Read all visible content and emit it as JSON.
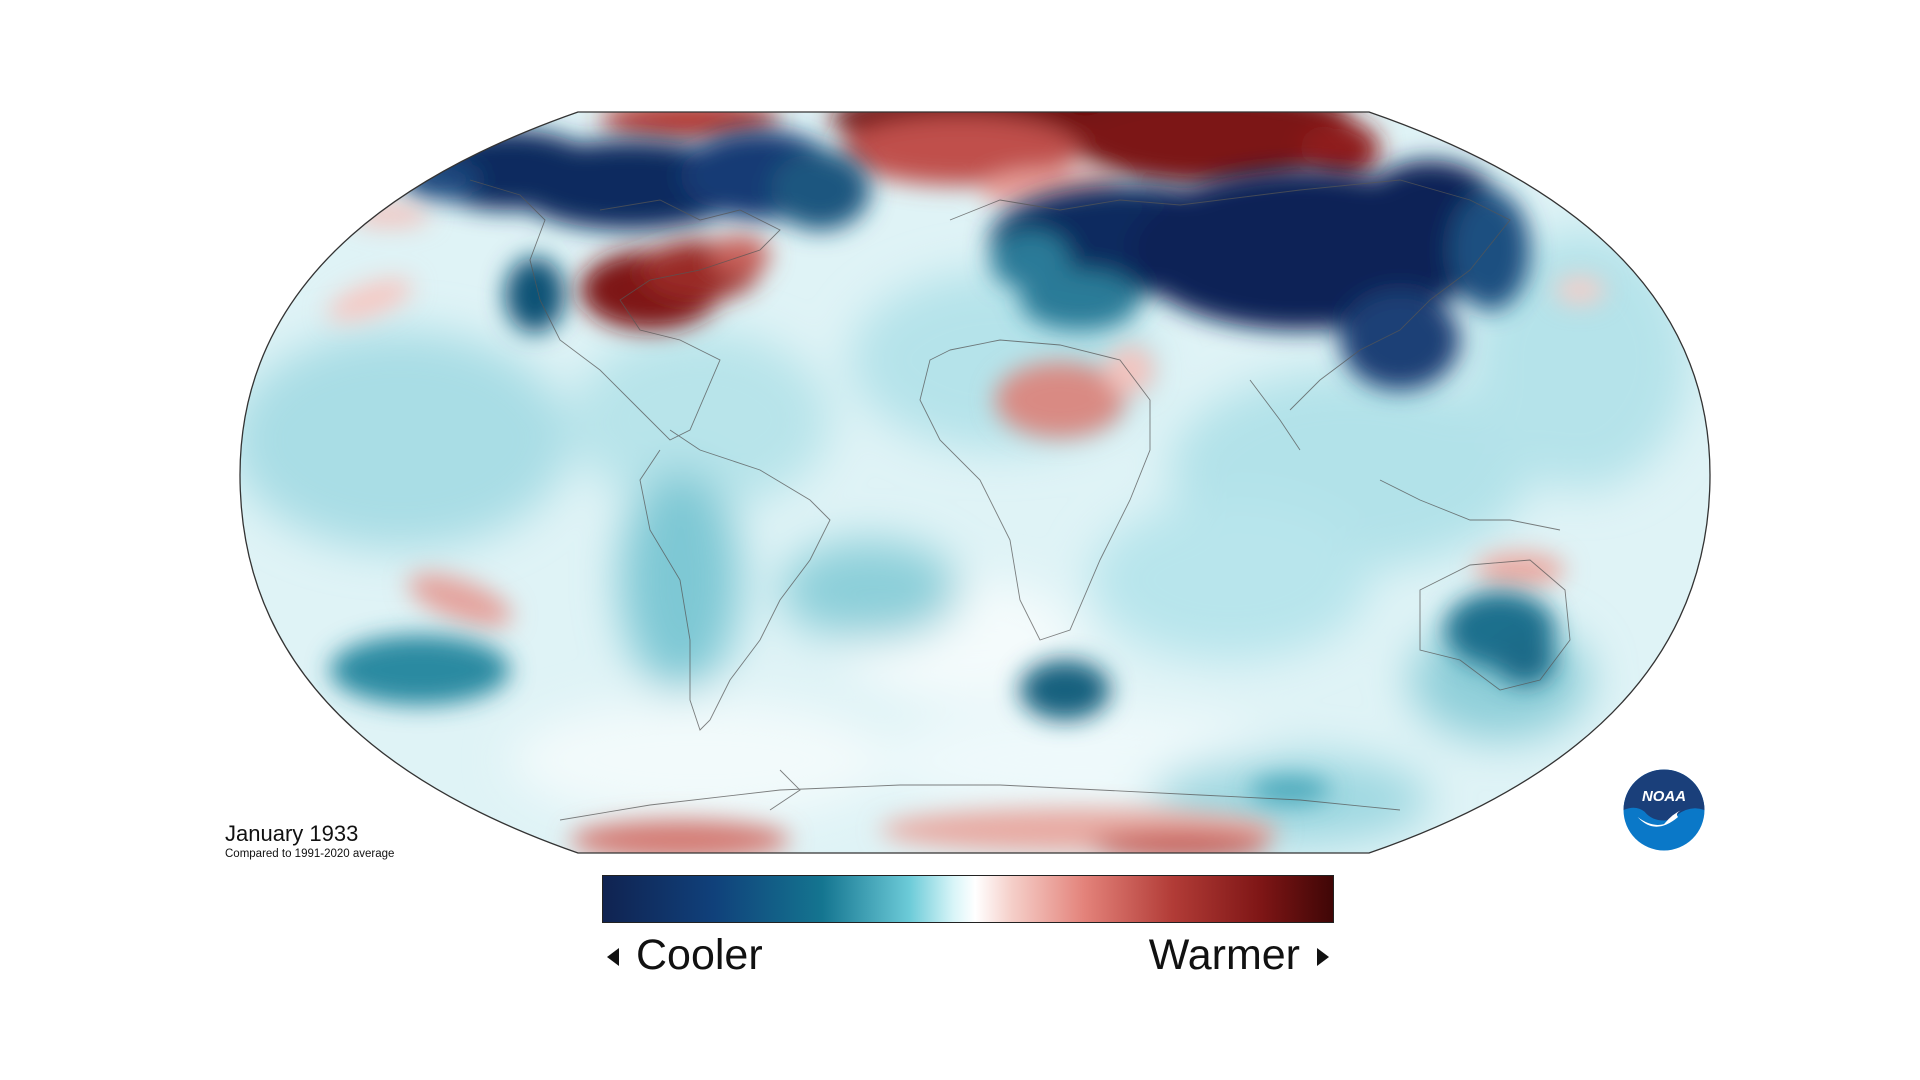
{
  "caption": {
    "date": "January 1933",
    "subtitle": "Compared to 1991-2020 average"
  },
  "legend": {
    "left_label": "Cooler",
    "right_label": "Warmer",
    "left_arrow_icon": "triangle-left-icon",
    "right_arrow_icon": "triangle-right-icon"
  },
  "logo": {
    "text": "NOAA",
    "icon": "noaa-logo",
    "colors": {
      "ring": "#1a4a8a",
      "lower": "#0a78c8"
    }
  },
  "colors": {
    "coolest": "#102351",
    "cool": "#147590",
    "neutral": "#ffffff",
    "warm": "#e3827a",
    "warmest": "#3f0606"
  }
}
